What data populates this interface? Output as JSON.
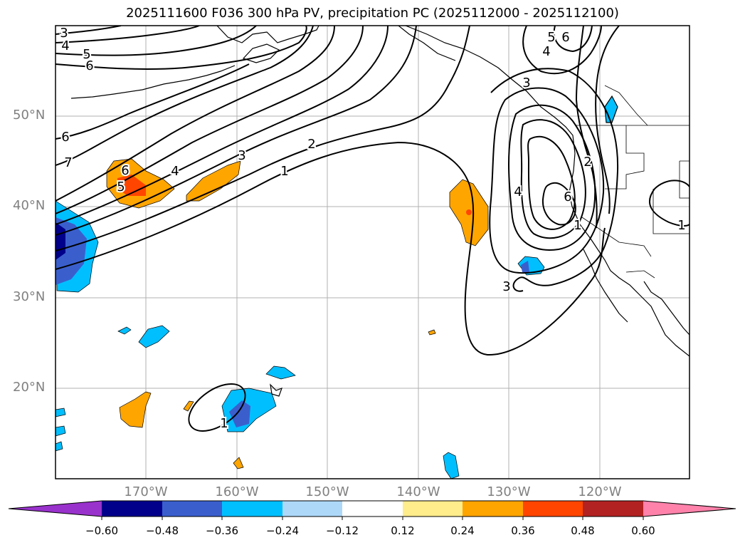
{
  "title": "2025111600 F036 300 hPa PV, precipitation PC (2025112000 - 2025112100)",
  "map": {
    "lat_labels": [
      "50°N",
      "40°N",
      "30°N",
      "20°N"
    ],
    "lon_labels": [
      "170°W",
      "160°W",
      "150°W",
      "140°W",
      "130°W",
      "120°W"
    ],
    "pv_contour_labels": [
      "3",
      "4",
      "5",
      "6",
      "6",
      "7",
      "6",
      "5",
      "4",
      "3",
      "2",
      "1",
      "6",
      "5",
      "4",
      "3",
      "2",
      "1",
      "3",
      "6",
      "4",
      "1",
      "1"
    ]
  },
  "colorbar": {
    "tick_labels": [
      "−0.60",
      "−0.48",
      "−0.36",
      "−0.24",
      "−0.12",
      "0.12",
      "0.24",
      "0.36",
      "0.48",
      "0.60"
    ],
    "colors": [
      "#9932cc",
      "#00008b",
      "#3a5fcd",
      "#00bfff",
      "#add8f8",
      "#ffffff",
      "#ffec8b",
      "#ffa500",
      "#ff4500",
      "#b22222",
      "#ff82ab"
    ]
  }
}
